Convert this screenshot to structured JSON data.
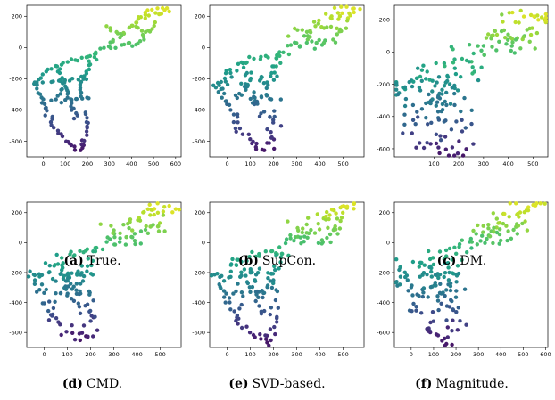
{
  "chart_data": [
    {
      "id": "a",
      "type": "scatter",
      "letter": "(a)",
      "caption": "True.",
      "xticks": [
        0,
        100,
        200,
        300,
        400,
        500,
        600
      ],
      "yticks": [
        200,
        0,
        -200,
        -400,
        -600
      ],
      "xlim": [
        -75,
        625
      ],
      "ylim": [
        -700,
        270
      ],
      "noise": 0,
      "colormap": "viridis",
      "color_by": "y"
    },
    {
      "id": "b",
      "type": "scatter",
      "letter": "(b)",
      "caption": "SupCon.",
      "xticks": [
        0,
        100,
        200,
        300,
        400,
        500
      ],
      "yticks": [
        200,
        0,
        -200,
        -400,
        -600
      ],
      "xlim": [
        -75,
        590
      ],
      "ylim": [
        -700,
        270
      ],
      "noise": 8,
      "colormap": "viridis",
      "color_by": "y"
    },
    {
      "id": "c",
      "type": "scatter",
      "letter": "(c)",
      "caption": "DM.",
      "xticks": [
        100,
        200,
        300,
        400,
        500
      ],
      "yticks": [
        200,
        0,
        -200,
        -400,
        -600
      ],
      "xlim": [
        -60,
        560
      ],
      "ylim": [
        -650,
        290
      ],
      "noise": 35,
      "colormap": "viridis",
      "color_by": "y"
    },
    {
      "id": "d",
      "type": "scatter",
      "letter": "(d)",
      "caption": "CMD.",
      "xticks": [
        0,
        100,
        200,
        300,
        400,
        500
      ],
      "yticks": [
        200,
        0,
        -200,
        -400,
        -600
      ],
      "xlim": [
        -75,
        590
      ],
      "ylim": [
        -700,
        270
      ],
      "noise": 14,
      "colormap": "viridis",
      "color_by": "y"
    },
    {
      "id": "e",
      "type": "scatter",
      "letter": "(e)",
      "caption": "SVD-based.",
      "xticks": [
        0,
        100,
        200,
        300,
        400,
        500
      ],
      "yticks": [
        200,
        0,
        -200,
        -400,
        -600
      ],
      "xlim": [
        -75,
        590
      ],
      "ylim": [
        -700,
        270
      ],
      "noise": 12,
      "colormap": "viridis",
      "color_by": "y"
    },
    {
      "id": "f",
      "type": "scatter",
      "letter": "(f)",
      "caption": "Magnitude.",
      "xticks": [
        0,
        100,
        200,
        300,
        400,
        500,
        600
      ],
      "yticks": [
        200,
        0,
        -200,
        -400,
        -600
      ],
      "xlim": [
        -75,
        610
      ],
      "ylim": [
        -700,
        270
      ],
      "noise": 20,
      "colormap": "viridis",
      "color_by": "y"
    }
  ]
}
